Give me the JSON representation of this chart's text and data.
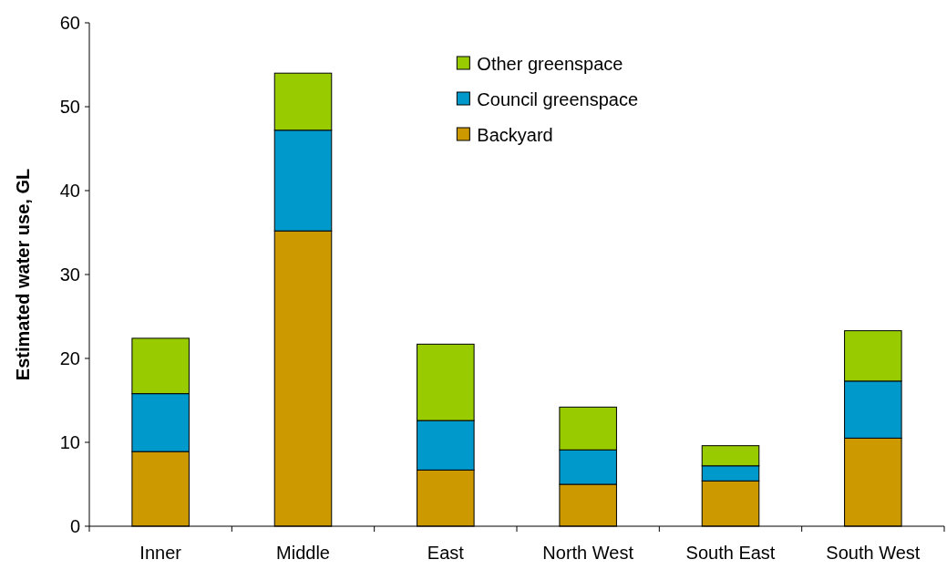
{
  "chart_data": {
    "type": "bar",
    "stacked": true,
    "ylabel": "Estimated water use, GL",
    "categories": [
      "Inner",
      "Middle",
      "East",
      "North West",
      "South East",
      "South West"
    ],
    "series": [
      {
        "name": "Backyard",
        "color": "#cc9900",
        "values": [
          8.9,
          35.2,
          6.7,
          5.0,
          5.4,
          10.5
        ]
      },
      {
        "name": "Council greenspace",
        "color": "#0099cc",
        "values": [
          6.9,
          12.0,
          5.9,
          4.1,
          1.8,
          6.8
        ]
      },
      {
        "name": "Other greenspace",
        "color": "#99cc00",
        "values": [
          6.6,
          6.8,
          9.1,
          5.1,
          2.4,
          6.0
        ]
      }
    ],
    "ylim": [
      0,
      60
    ],
    "yticks": [
      0,
      10,
      20,
      30,
      40,
      50,
      60
    ],
    "grid": false,
    "legend": "top right"
  }
}
